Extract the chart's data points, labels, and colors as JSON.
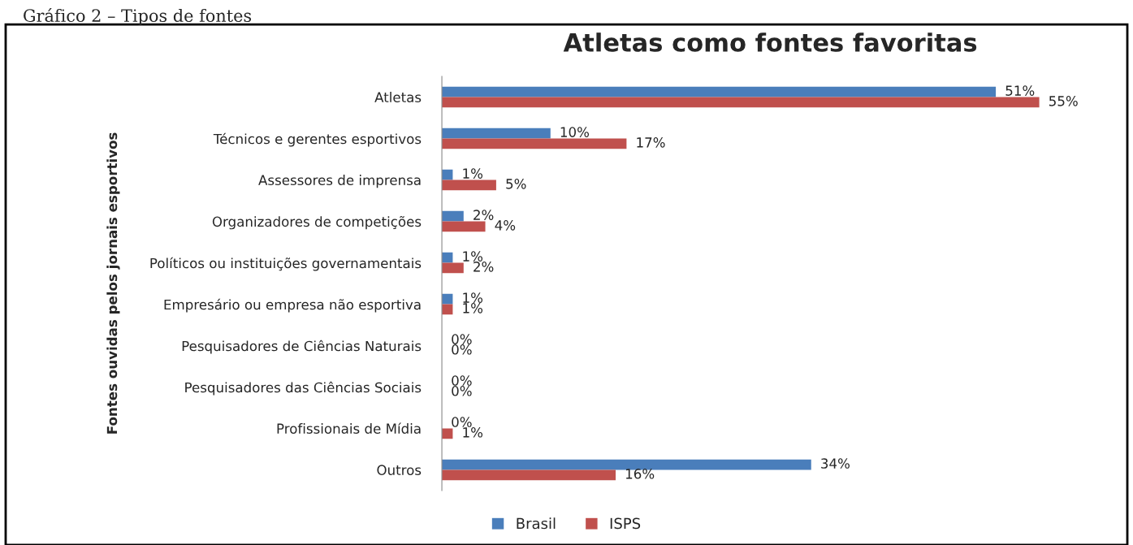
{
  "chart_data": {
    "type": "bar",
    "orientation": "horizontal",
    "title": "Atletas como fontes favoritas",
    "ylabel": "Fontes ouvidas pelos jornais esportivos",
    "annotations": [
      "Gráfico 2 – Tipos de fontes"
    ],
    "categories": [
      "Atletas",
      "Técnicos e gerentes esportivos",
      "Assessores de imprensa",
      "Organizadores de competições",
      "Políticos ou instituições governamentais",
      "Empresário ou empresa não esportiva",
      "Pesquisadores de Ciências Naturais",
      "Pesquisadores das Ciências Sociais",
      "Profissionais de Mídia",
      "Outros"
    ],
    "series": [
      {
        "name": "Brasil",
        "color": "#4a7ebb",
        "values": [
          51,
          10,
          1,
          2,
          1,
          1,
          0,
          0,
          0,
          34
        ],
        "value_labels": [
          "51%",
          "10%",
          "1%",
          "2%",
          "1%",
          "1%",
          "0%",
          "0%",
          "0%",
          "34%"
        ]
      },
      {
        "name": "ISPS",
        "color": "#c0504d",
        "values": [
          55,
          17,
          5,
          4,
          2,
          1,
          0,
          0,
          1,
          16
        ],
        "value_labels": [
          "55%",
          "17%",
          "5%",
          "4%",
          "2%",
          "1%",
          "0%",
          "0%",
          "1%",
          "16%"
        ]
      }
    ],
    "legend": "bottom",
    "tick_labels": "y",
    "grid": false
  }
}
